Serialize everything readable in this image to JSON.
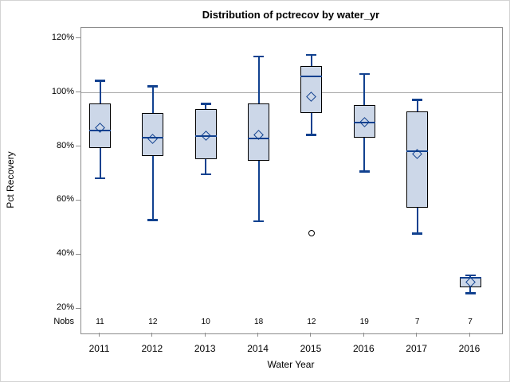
{
  "figure": {
    "title": "Distribution of pctrecov by water_yr",
    "y_axis_label": "Pct Recovery",
    "x_axis_label": "Water Year",
    "nobs_header": "Nobs"
  },
  "chart_data": {
    "type": "boxplot",
    "title": "Distribution of pctrecov by water_yr",
    "xlabel": "Water Year",
    "ylabel": "Pct Recovery",
    "ylim": [
      11,
      124
    ],
    "grid": "horizontal reference line at 100% only",
    "reference_line_value": 100,
    "y_ticks": [
      {
        "value": 120,
        "label": "120%"
      },
      {
        "value": 100,
        "label": "100%"
      },
      {
        "value": 80,
        "label": "80%"
      },
      {
        "value": 60,
        "label": "60%"
      },
      {
        "value": 40,
        "label": "40%"
      },
      {
        "value": 20,
        "label": "20%"
      }
    ],
    "categories": [
      "2011",
      "2012",
      "2013",
      "2014",
      "2015",
      "2016",
      "2017",
      "2016"
    ],
    "nobs": [
      11,
      12,
      10,
      18,
      12,
      19,
      7,
      7
    ],
    "series": [
      {
        "water_yr": "2011",
        "n": 11,
        "whisker_low": 68.5,
        "q1": 79.5,
        "median": 86,
        "mean": 87,
        "q3": 96,
        "whisker_high": 104.5,
        "outliers": []
      },
      {
        "water_yr": "2012",
        "n": 12,
        "whisker_low": 53,
        "q1": 76.5,
        "median": 83.5,
        "mean": 83,
        "q3": 92.5,
        "whisker_high": 102.5,
        "outliers": []
      },
      {
        "water_yr": "2013",
        "n": 10,
        "whisker_low": 70,
        "q1": 75.5,
        "median": 84,
        "mean": 84,
        "q3": 94,
        "whisker_high": 96,
        "outliers": []
      },
      {
        "water_yr": "2014",
        "n": 18,
        "whisker_low": 52.5,
        "q1": 75,
        "median": 83,
        "mean": 84.5,
        "q3": 96,
        "whisker_high": 113.5,
        "outliers": []
      },
      {
        "water_yr": "2015",
        "n": 12,
        "whisker_low": 84.5,
        "q1": 92.5,
        "median": 106,
        "mean": 98.5,
        "q3": 110,
        "whisker_high": 114,
        "outliers": [
          48
        ]
      },
      {
        "water_yr": "2016",
        "n": 19,
        "whisker_low": 71,
        "q1": 83.5,
        "median": 89,
        "mean": 89,
        "q3": 95.5,
        "whisker_high": 107,
        "outliers": []
      },
      {
        "water_yr": "2017",
        "n": 7,
        "whisker_low": 48,
        "q1": 57.5,
        "median": 78.5,
        "mean": 77.5,
        "q3": 93,
        "whisker_high": 97.5,
        "outliers": []
      },
      {
        "water_yr": "2016",
        "n": 7,
        "whisker_low": 26,
        "q1": 28,
        "median": 31.5,
        "mean": 30,
        "q3": 32,
        "whisker_high": 32.5,
        "outliers": []
      }
    ],
    "legend": "none",
    "marker_note": "open diamond = mean, horizontal blue line = median, open circle = outlier"
  },
  "colors": {
    "box_fill": "#ccd7e8",
    "box_border": "#000000",
    "line_blue": "#11418f",
    "grid_gray": "#a8a8a8",
    "frame_gray": "#8c8c8c",
    "image_border": "#d3d3d3",
    "text": "#000000"
  }
}
